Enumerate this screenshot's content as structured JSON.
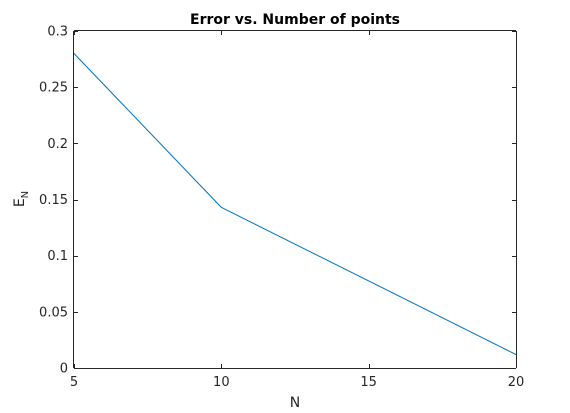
{
  "chart_data": {
    "type": "line",
    "title": "Error vs. Number of points",
    "xlabel": "N",
    "ylabel": {
      "main": "E",
      "subscript": "N"
    },
    "xlim": [
      5,
      20
    ],
    "ylim": [
      0,
      0.3
    ],
    "xticks": [
      5,
      10,
      15,
      20
    ],
    "xtick_labels": [
      "5",
      "10",
      "15",
      "20"
    ],
    "yticks": [
      0,
      0.05,
      0.1,
      0.15,
      0.2,
      0.25,
      0.3
    ],
    "ytick_labels": [
      "0",
      "0.05",
      "0.1",
      "0.15",
      "0.2",
      "0.25",
      "0.3"
    ],
    "grid": false,
    "box": true,
    "series": [
      {
        "x": [
          5,
          10,
          20
        ],
        "y": [
          0.28,
          0.143,
          0.012
        ],
        "color": "#0072BD"
      }
    ]
  },
  "colors": {
    "axis": "#262626",
    "line": "#0072BD",
    "background": "#ffffff"
  }
}
